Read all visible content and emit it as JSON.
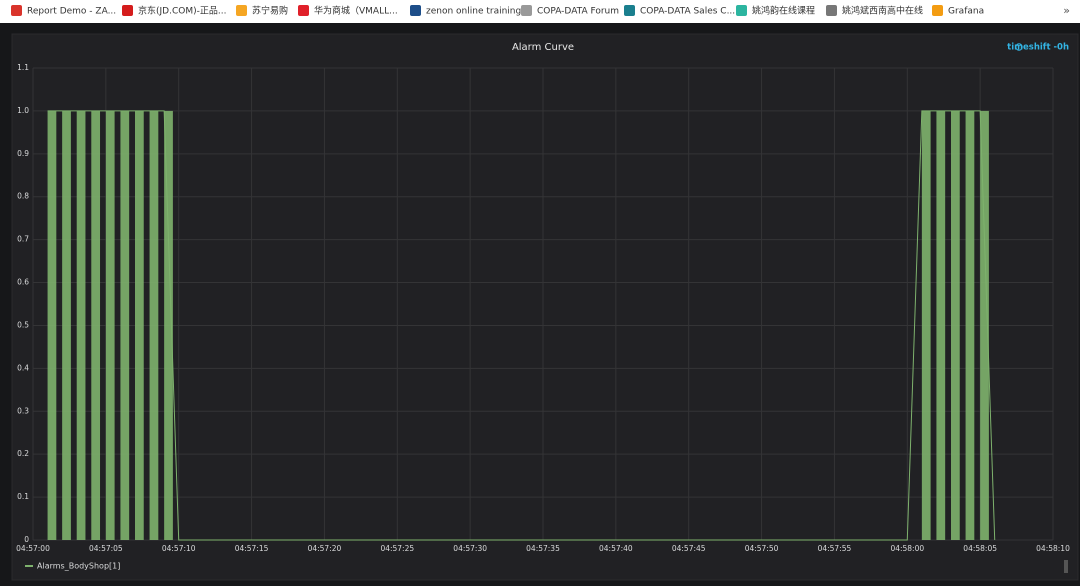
{
  "bookmarks": [
    "Report Demo - ZA...",
    "京东(JD.COM)-正品...",
    "苏宁易购",
    "华为商城（VMALL...",
    "zenon online training",
    "COPA-DATA Forum",
    "COPA-DATA Sales C...",
    "姚鸿韵在线课程",
    "姚鸿斌西南高中在线",
    "Grafana"
  ],
  "bookmarks_more": "»",
  "chart_data": {
    "type": "line",
    "title": "Alarm Curve",
    "timeshift": "timeshift -0h",
    "x": [
      "04:57:01",
      "04:57:02",
      "04:57:03",
      "04:57:04",
      "04:57:05",
      "04:57:06",
      "04:57:07",
      "04:57:08",
      "04:57:09",
      "04:57:10",
      "04:58:00",
      "04:58:01",
      "04:58:02",
      "04:58:03",
      "04:58:04",
      "04:58:05",
      "04:58:06"
    ],
    "series": [
      {
        "name": "Alarms_BodyShop[1]",
        "color": "#7eb26d",
        "values": [
          1,
          1,
          1,
          1,
          1,
          1,
          1,
          1,
          1,
          0,
          0,
          1,
          1,
          1,
          1,
          1,
          0
        ]
      }
    ],
    "xlim": [
      "04:57:00",
      "04:58:10"
    ],
    "xticks": [
      "04:57:00",
      "04:57:05",
      "04:57:10",
      "04:57:15",
      "04:57:20",
      "04:57:25",
      "04:57:30",
      "04:57:35",
      "04:57:40",
      "04:57:45",
      "04:57:50",
      "04:57:55",
      "04:58:00",
      "04:58:05",
      "04:58:10"
    ],
    "ylim": [
      0,
      1.1
    ],
    "yticks": [
      0,
      0.1,
      0.2,
      0.3,
      0.4,
      0.5,
      0.6,
      0.7,
      0.8,
      0.9,
      {
        "value": 1,
        "label": "1.0"
      },
      1.1
    ],
    "grid": true,
    "bars": true
  }
}
